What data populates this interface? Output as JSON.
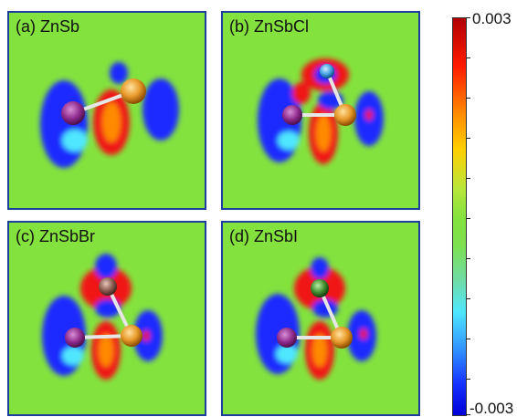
{
  "panels": [
    {
      "label": "(a) ZnSb"
    },
    {
      "label": "(b) ZnSbCl"
    },
    {
      "label": "(c) ZnSbBr"
    },
    {
      "label": "(d) ZnSbI"
    }
  ],
  "colorbar": {
    "max_label": "0.003",
    "min_label": "-0.003",
    "colors": {
      "high": "#b00000",
      "mid": "#84e23e",
      "low": "#0000d8"
    }
  },
  "colors": {
    "background": "#84e23e",
    "frame": "#1c3f9e",
    "zn_atom": "#e89a2a",
    "sb_atom": "#8e2a8c",
    "cl_atom": "#3fa0e0",
    "br_atom": "#8a5a4e",
    "i_atom": "#3e8a2c"
  }
}
